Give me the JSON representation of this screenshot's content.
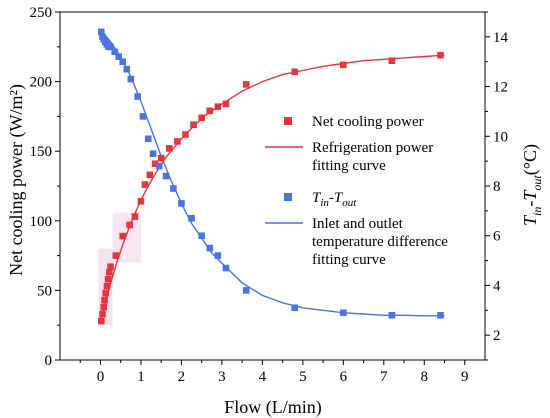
{
  "chart_data": {
    "type": "scatter",
    "xlabel": "Flow (L/min)",
    "ylabel_left": "Net cooling power (W/m²)",
    "ylabel_right": "T_in-T_out (°C)",
    "xlim": [
      -1,
      9.5
    ],
    "ylim_left": [
      0,
      250
    ],
    "ylim_right": [
      1.0,
      15.0
    ],
    "xticks": [
      0,
      1,
      2,
      3,
      4,
      5,
      6,
      7,
      8,
      9
    ],
    "yticks_left": [
      0,
      50,
      100,
      150,
      200,
      250
    ],
    "yticks_right": [
      2,
      4,
      6,
      8,
      10,
      12,
      14
    ],
    "grid": false,
    "legend_position": "right-middle",
    "colors": {
      "power": "#e8343c",
      "delta_t": "#4a74e0"
    },
    "series": [
      {
        "name": "Net cooling power",
        "axis": "left",
        "marker": "square",
        "color": "#e8343c",
        "x": [
          0.02,
          0.05,
          0.08,
          0.1,
          0.13,
          0.16,
          0.19,
          0.22,
          0.25,
          0.38,
          0.55,
          0.72,
          0.85,
          1.0,
          1.1,
          1.22,
          1.35,
          1.5,
          1.7,
          1.9,
          2.1,
          2.3,
          2.5,
          2.7,
          2.9,
          3.1,
          3.6,
          4.8,
          6.0,
          7.2,
          8.4
        ],
        "y": [
          28,
          33,
          38,
          43,
          48,
          53,
          58,
          63,
          67,
          75,
          89,
          97,
          103,
          114,
          126,
          133,
          141,
          145,
          152,
          157,
          162,
          169,
          174,
          179,
          182,
          184,
          198,
          207,
          212,
          215,
          219
        ]
      },
      {
        "name": "Refrigeration power fitting curve",
        "axis": "left",
        "type": "line",
        "color": "#e8343c",
        "x": [
          0.0,
          0.1,
          0.2,
          0.4,
          0.6,
          0.8,
          1.0,
          1.2,
          1.4,
          1.6,
          1.8,
          2.0,
          2.3,
          2.6,
          3.0,
          3.5,
          4.0,
          4.5,
          5.0,
          5.5,
          6.0,
          6.5,
          7.0,
          7.5,
          8.0,
          8.5
        ],
        "y": [
          28,
          39,
          50,
          70,
          87,
          102,
          115,
          126,
          136,
          145,
          152,
          159,
          168,
          176,
          184,
          193,
          200,
          205,
          208,
          211,
          213,
          215,
          216,
          217,
          218,
          219
        ]
      },
      {
        "name": "T_in-T_out",
        "axis": "right",
        "marker": "square",
        "color": "#4a74e0",
        "x": [
          0.02,
          0.05,
          0.08,
          0.12,
          0.16,
          0.2,
          0.25,
          0.35,
          0.45,
          0.55,
          0.65,
          0.75,
          0.92,
          1.05,
          1.18,
          1.3,
          1.45,
          1.62,
          1.8,
          2.0,
          2.25,
          2.5,
          2.7,
          2.9,
          3.1,
          3.6,
          4.8,
          6.0,
          7.2,
          8.4
        ],
        "y": [
          14.2,
          14.0,
          13.9,
          13.8,
          13.7,
          13.6,
          13.6,
          13.4,
          13.2,
          13.0,
          12.7,
          12.3,
          11.6,
          10.8,
          9.9,
          9.3,
          8.8,
          8.4,
          7.9,
          7.3,
          6.7,
          6.0,
          5.5,
          5.2,
          4.7,
          3.8,
          3.1,
          2.9,
          2.8,
          2.8
        ]
      },
      {
        "name": "Inlet and outlet temperature difference fitting curve",
        "axis": "right",
        "type": "line",
        "color": "#4a74e0",
        "x": [
          0.0,
          0.25,
          0.5,
          0.75,
          1.0,
          1.25,
          1.5,
          1.75,
          2.0,
          2.25,
          2.5,
          2.75,
          3.0,
          3.5,
          4.0,
          4.5,
          5.0,
          5.5,
          6.0,
          6.5,
          7.0,
          7.5,
          8.0,
          8.5
        ],
        "y": [
          14.3,
          13.8,
          13.2,
          12.4,
          11.4,
          10.3,
          9.2,
          8.2,
          7.3,
          6.5,
          5.9,
          5.3,
          4.9,
          4.1,
          3.6,
          3.3,
          3.1,
          3.0,
          2.9,
          2.85,
          2.8,
          2.8,
          2.78,
          2.78
        ]
      }
    ],
    "legend": [
      {
        "kind": "marker",
        "color": "#e8343c",
        "lines": [
          "Net cooling power"
        ]
      },
      {
        "kind": "line",
        "color": "#e8343c",
        "lines": [
          "Refrigeration power",
          "fitting curve"
        ]
      },
      {
        "kind": "marker",
        "color": "#4a74e0",
        "lines": [
          "T_in-T_out"
        ]
      },
      {
        "kind": "line",
        "color": "#4a74e0",
        "lines": [
          "Inlet and outlet",
          "temperature difference",
          "fitting curve"
        ]
      }
    ]
  }
}
